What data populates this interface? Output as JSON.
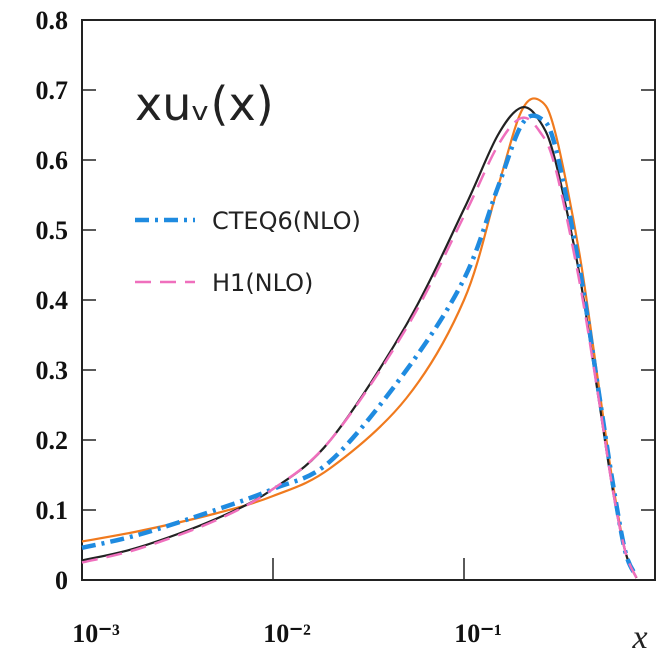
{
  "chart_data": {
    "type": "line",
    "annotation": "xuᵥ(x)",
    "x_label": "x",
    "log_x": true,
    "legend": "upper left",
    "x": [
      0.001,
      0.002,
      0.005,
      0.01,
      0.02,
      0.05,
      0.1,
      0.15,
      0.2,
      0.25,
      0.3,
      0.4,
      0.5,
      0.6,
      0.7,
      0.8
    ],
    "series": [
      {
        "color": "#f07a1e",
        "style": "solid",
        "values": [
          0.055,
          0.07,
          0.095,
          0.12,
          0.16,
          0.26,
          0.4,
          0.56,
          0.67,
          0.685,
          0.64,
          0.47,
          0.29,
          0.14,
          0.04,
          0.003
        ]
      },
      {
        "color": "#222222",
        "style": "solid",
        "values": [
          0.028,
          0.047,
          0.087,
          0.13,
          0.2,
          0.365,
          0.53,
          0.635,
          0.675,
          0.655,
          0.6,
          0.44,
          0.27,
          0.13,
          0.04,
          0.003
        ]
      },
      {
        "name": "CTEQ6(NLO)",
        "color": "#1f8be0",
        "style": "dashdot",
        "values": [
          0.046,
          0.065,
          0.1,
          0.13,
          0.17,
          0.3,
          0.43,
          0.56,
          0.65,
          0.66,
          0.62,
          0.45,
          0.28,
          0.14,
          0.04,
          0.005
        ]
      },
      {
        "name": "H1(NLO)",
        "color": "#ef6fbd",
        "style": "dashed",
        "values": [
          0.025,
          0.045,
          0.085,
          0.13,
          0.2,
          0.36,
          0.52,
          0.62,
          0.66,
          0.64,
          0.59,
          0.43,
          0.27,
          0.13,
          0.04,
          0.003
        ]
      }
    ],
    "xlim": [
      0.001,
      1
    ],
    "xticks": [
      {
        "value": 0.001,
        "label": "10⁻³"
      },
      {
        "value": 0.01,
        "label": "10⁻²"
      },
      {
        "value": 0.1,
        "label": "10⁻¹"
      }
    ],
    "ylim": [
      0,
      0.8
    ],
    "yticks": [
      0,
      0.1,
      0.2,
      0.3,
      0.4,
      0.5,
      0.6,
      0.7,
      0.8
    ]
  }
}
